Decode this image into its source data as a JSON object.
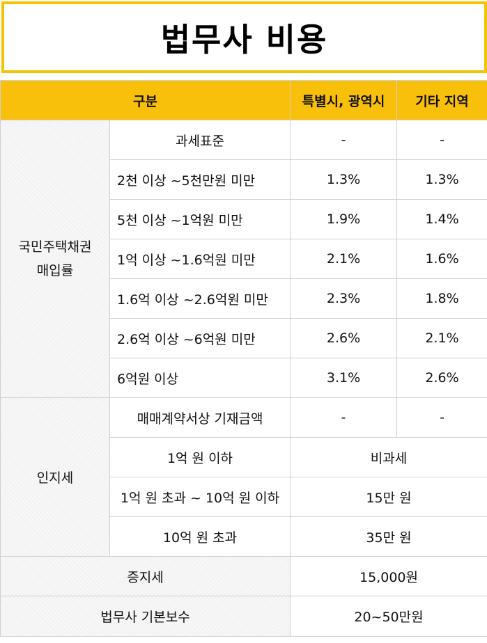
{
  "title": "법무사 비용",
  "headers": {
    "category": "구분",
    "metro": "특별시, 광역시",
    "other": "기타 지역"
  },
  "bond": {
    "category_line1": "국민주택채권",
    "category_line2": "매입률",
    "rows": [
      {
        "label": "과세표준",
        "metro": "-",
        "other": "-"
      },
      {
        "label": "2천 이상 ~5천만원 미만",
        "metro": "1.3%",
        "other": "1.3%"
      },
      {
        "label": "5천 이상 ~1억원 미만",
        "metro": "1.9%",
        "other": "1.4%"
      },
      {
        "label": "1억 이상 ~1.6억원 미만",
        "metro": "2.1%",
        "other": "1.6%"
      },
      {
        "label": "1.6억 이상  ~2.6억원 미만",
        "metro": "2.3%",
        "other": "1.8%"
      },
      {
        "label": "2.6억 이상 ~6억원 미만",
        "metro": "2.6%",
        "other": "2.1%"
      },
      {
        "label": "6억원 이상",
        "metro": "3.1%",
        "other": "2.6%"
      }
    ]
  },
  "stamp": {
    "category": "인지세",
    "header_row": {
      "label": "매매계약서상 기재금액",
      "metro": "-",
      "other": "-"
    },
    "rows": [
      {
        "label": "1억 원 이하",
        "value": "비과세"
      },
      {
        "label": "1억 원 초과  ~ 10억 원 이하",
        "value": "15만 원"
      },
      {
        "label": "10억 원 초과",
        "value": "35만 원"
      }
    ]
  },
  "certificate_tax": {
    "label": "증지세",
    "value": "15,000원"
  },
  "basic_fee": {
    "label": "법무사 기본보수",
    "value": "20~50만원"
  }
}
